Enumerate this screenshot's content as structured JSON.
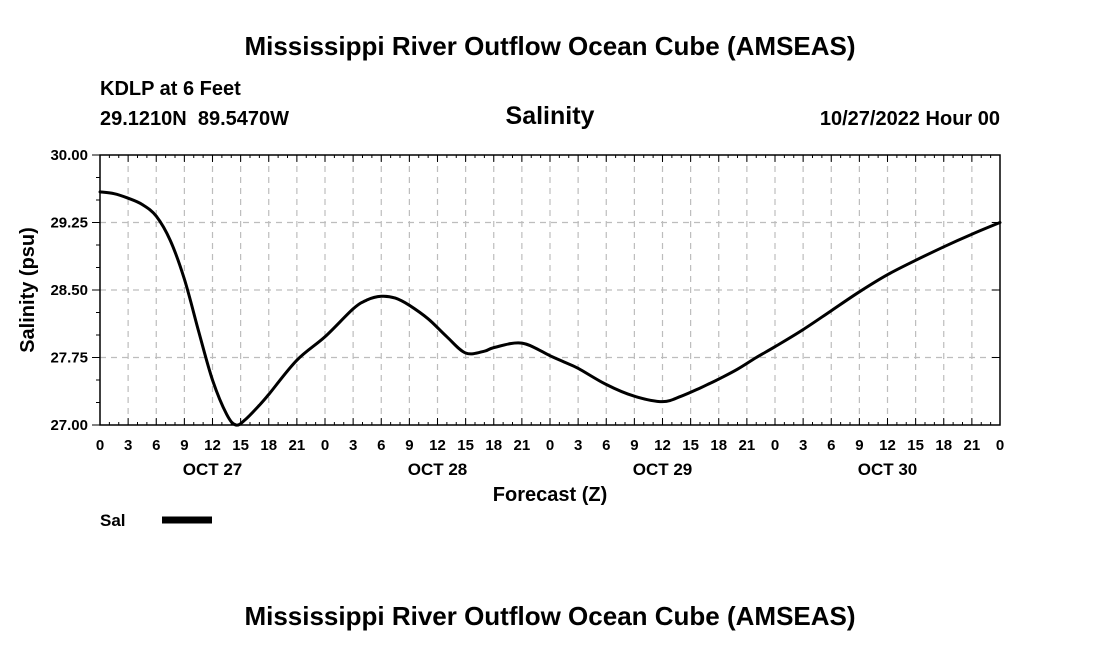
{
  "chart_data": {
    "type": "line",
    "title": "Mississippi River Outflow Ocean Cube (AMSEAS)",
    "repeat_title": "Mississippi River Outflow Ocean Cube (AMSEAS)",
    "station": "KDLP at 6 Feet",
    "location": "29.1210N  89.5470W",
    "subtitle": "Salinity",
    "run_time": "10/27/2022 Hour 00",
    "xlabel": "Forecast (Z)",
    "ylabel": "Salinity (psu)",
    "xlim": [
      0,
      96
    ],
    "ylim": [
      27.0,
      30.0
    ],
    "yticks": [
      "30.00",
      "29.25",
      "28.50",
      "27.75",
      "27.00"
    ],
    "ytick_values": [
      30.0,
      29.25,
      28.5,
      27.75,
      27.0
    ],
    "xtick_labels": [
      "0",
      "3",
      "6",
      "9",
      "12",
      "15",
      "18",
      "21",
      "0",
      "3",
      "6",
      "9",
      "12",
      "15",
      "18",
      "21",
      "0",
      "3",
      "6",
      "9",
      "12",
      "15",
      "18",
      "21",
      "0",
      "3",
      "6",
      "9",
      "12",
      "15",
      "18",
      "21",
      "0"
    ],
    "day_labels": [
      {
        "label": "OCT 27",
        "hour": 12
      },
      {
        "label": "OCT 28",
        "hour": 36
      },
      {
        "label": "OCT 29",
        "hour": 60
      },
      {
        "label": "OCT 30",
        "hour": 84
      }
    ],
    "grid": true,
    "legend_position": "bottom-left",
    "series": [
      {
        "name": "Sal",
        "color": "#000000",
        "x": [
          0,
          1.5,
          3,
          4.5,
          6,
          7.5,
          9,
          10.5,
          12,
          13.5,
          14.5,
          15.5,
          17,
          18,
          21,
          24,
          27,
          28.5,
          30,
          31.5,
          33,
          35,
          37,
          39,
          41,
          42,
          45,
          48,
          49.5,
          51,
          54,
          57,
          60,
          62,
          64,
          65,
          66,
          68,
          70,
          72,
          75,
          78,
          81,
          84,
          87,
          90,
          93,
          96
        ],
        "y": [
          29.59,
          29.57,
          29.52,
          29.45,
          29.32,
          29.05,
          28.62,
          28.05,
          27.5,
          27.12,
          27.0,
          27.06,
          27.22,
          27.34,
          27.72,
          27.98,
          28.29,
          28.39,
          28.43,
          28.41,
          28.33,
          28.18,
          27.98,
          27.8,
          27.82,
          27.86,
          27.91,
          27.77,
          27.7,
          27.63,
          27.45,
          27.32,
          27.26,
          27.32,
          27.41,
          27.46,
          27.51,
          27.62,
          27.75,
          27.87,
          28.06,
          28.27,
          28.48,
          28.67,
          28.83,
          28.98,
          29.12,
          29.25
        ]
      }
    ]
  }
}
